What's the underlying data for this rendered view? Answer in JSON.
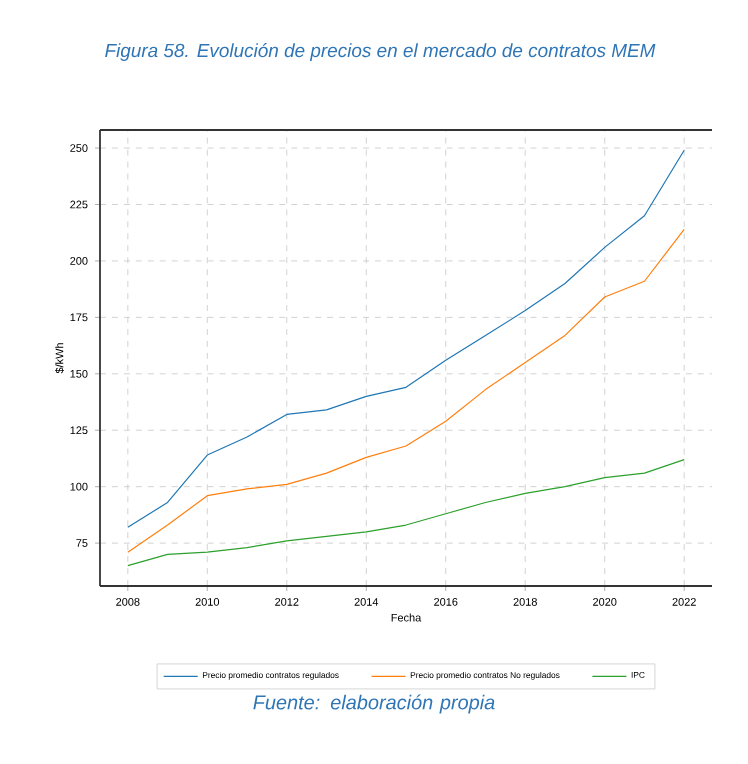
{
  "chart_data": {
    "type": "line",
    "title": "Figura 58. Evolución de precios en el mercado de contratos MEM",
    "xlabel": "Fecha",
    "ylabel": "$/kWh",
    "x": [
      2008,
      2009,
      2010,
      2011,
      2012,
      2013,
      2014,
      2015,
      2016,
      2017,
      2018,
      2019,
      2020,
      2021,
      2022
    ],
    "series": [
      {
        "name": "Precio promedio contratos regulados",
        "color": "#1f77b4",
        "values": [
          82,
          93,
          114,
          122,
          132,
          134,
          140,
          144,
          156,
          167,
          178,
          190,
          206,
          220,
          249
        ]
      },
      {
        "name": "Precio promedio contratos No regulados",
        "color": "#ff7f0e",
        "values": [
          71,
          83,
          96,
          99,
          101,
          106,
          113,
          118,
          129,
          143,
          155,
          167,
          184,
          191,
          214
        ]
      },
      {
        "name": "IPC",
        "color": "#2ca02c",
        "values": [
          65,
          70,
          71,
          73,
          76,
          78,
          80,
          83,
          88,
          93,
          97,
          100,
          104,
          106,
          112
        ]
      }
    ],
    "xlim": [
      2007.3,
      2022.7
    ],
    "xticks": [
      2008,
      2010,
      2012,
      2014,
      2016,
      2018,
      2020,
      2022
    ],
    "ylim": [
      56,
      258
    ],
    "yticks": [
      75,
      100,
      125,
      150,
      175,
      200,
      225,
      250
    ],
    "grid": true,
    "legend": "bottom",
    "annotations": [
      "Fuente: elaboración propia"
    ]
  }
}
